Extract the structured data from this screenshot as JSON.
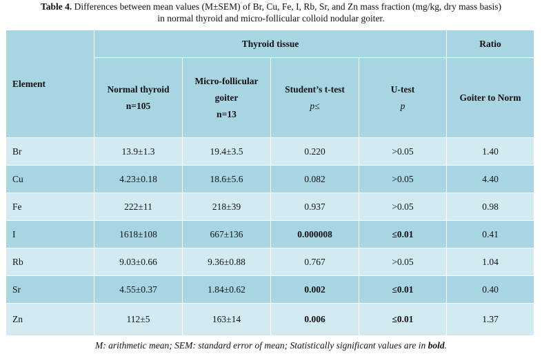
{
  "caption": {
    "label": "Table 4.",
    "line1": " Differences between mean values (M±SEM) of Br, Cu, Fe, I, Rb, Sr, and Zn mass fraction (mg/kg, dry mass basis)",
    "line2": "in normal thyroid and micro-follicular colloid nodular goiter."
  },
  "header": {
    "element": "Element",
    "group_thyroid": "Thyroid tissue",
    "group_ratio": "Ratio",
    "normal_line1": "Normal thyroid",
    "normal_line2": "n=105",
    "micro_line1": "Micro-follicular",
    "micro_line2": "goiter",
    "micro_line3": "n=13",
    "ttest_line1": "Student’s t-test",
    "ttest_line2": "p≤",
    "utest_line1": "U-test",
    "utest_line2": "p",
    "ratio_sub": "Goiter to Norm"
  },
  "rows": [
    {
      "element": "Br",
      "normal": "13.9±1.3",
      "micro": "19.4±3.5",
      "ttest": "0.220",
      "utest": ">0.05",
      "ratio": "1.40",
      "sig_t": false,
      "sig_u": false
    },
    {
      "element": "Cu",
      "normal": "4.23±0.18",
      "micro": "18.6±5.6",
      "ttest": "0.082",
      "utest": ">0.05",
      "ratio": "4.40",
      "sig_t": false,
      "sig_u": false
    },
    {
      "element": "Fe",
      "normal": "222±11",
      "micro": "218±39",
      "ttest": "0.937",
      "utest": ">0.05",
      "ratio": "0.98",
      "sig_t": false,
      "sig_u": false
    },
    {
      "element": "I",
      "normal": "1618±108",
      "micro": "667±136",
      "ttest": "0.000008",
      "utest": "≤0.01",
      "ratio": "0.41",
      "sig_t": true,
      "sig_u": true
    },
    {
      "element": "Rb",
      "normal": "9.03±0.66",
      "micro": "9.36±0.88",
      "ttest": "0.767",
      "utest": ">0.05",
      "ratio": "1.04",
      "sig_t": false,
      "sig_u": false
    },
    {
      "element": "Sr",
      "normal": "4.55±0.37",
      "micro": "1.84±0.62",
      "ttest": "0.002",
      "utest": "≤0.01",
      "ratio": "0.40",
      "sig_t": true,
      "sig_u": true
    },
    {
      "element": "Zn",
      "normal": "112±5",
      "micro": "163±14",
      "ttest": "0.006",
      "utest": "≤0.01",
      "ratio": "1.37",
      "sig_t": true,
      "sig_u": true
    }
  ],
  "footer": {
    "text": "M: arithmetic mean; SEM: standard error of mean; Statistically significant values are in ",
    "bold_word": "bold",
    "end": "."
  },
  "colors": {
    "header_bg": "#a8d5e2",
    "row_light": "#d2ebf2",
    "row_dark": "#a8d5e2"
  }
}
